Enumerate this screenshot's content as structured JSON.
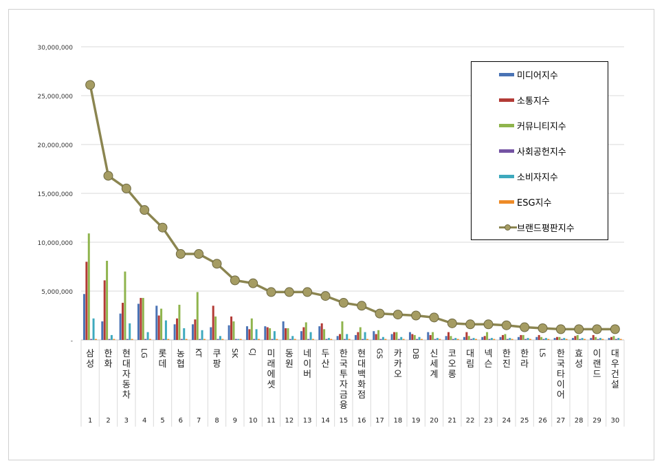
{
  "colors": {
    "media": "#4a73b5",
    "comm": "#b33b36",
    "community": "#8fb44d",
    "social": "#7453a3",
    "consumer": "#3ea9bd",
    "esg": "#ee8b27",
    "brand_line": "#8b8550",
    "brand_marker": "#a59c63"
  },
  "chart_data": {
    "type": "bar",
    "ylim": [
      0,
      30000000
    ],
    "ytick_labels": [
      "30,000,000",
      "25,000,000",
      "20,000,000",
      "15,000,000",
      "10,000,000",
      "5,000,000",
      "-"
    ],
    "ytick_values": [
      30000000,
      25000000,
      20000000,
      15000000,
      10000000,
      5000000,
      0
    ],
    "categories": [
      "삼성",
      "한화",
      "현대자동차",
      "LG",
      "롯데",
      "농협",
      "KT",
      "쿠팡",
      "SK",
      "CJ",
      "미래에셋",
      "동원",
      "네이버",
      "두산",
      "한국투자금융",
      "현대백화점",
      "GS",
      "카카오",
      "DB",
      "신세계",
      "코오롱",
      "대림",
      "넥슨",
      "한진",
      "한라",
      "LS",
      "한국타이어",
      "효성",
      "이랜드",
      "대우건설"
    ],
    "ranks": [
      "1",
      "2",
      "3",
      "4",
      "5",
      "6",
      "7",
      "8",
      "9",
      "10",
      "11",
      "12",
      "13",
      "14",
      "15",
      "16",
      "17",
      "18",
      "19",
      "20",
      "21",
      "22",
      "23",
      "24",
      "25",
      "26",
      "27",
      "28",
      "29",
      "30"
    ],
    "series": [
      {
        "name": "미디어지수",
        "type": "bar",
        "color_key": "media",
        "values": [
          4700000,
          1900000,
          2700000,
          3700000,
          3500000,
          1600000,
          1600000,
          1300000,
          1500000,
          1400000,
          1400000,
          1900000,
          900000,
          1400000,
          400000,
          500000,
          900000,
          600000,
          800000,
          800000,
          400000,
          300000,
          300000,
          300000,
          300000,
          300000,
          200000,
          200000,
          200000,
          200000
        ]
      },
      {
        "name": "소통지수",
        "type": "bar",
        "color_key": "comm",
        "values": [
          8000000,
          6100000,
          3800000,
          4300000,
          2500000,
          2200000,
          2100000,
          3500000,
          2400000,
          1100000,
          1300000,
          1200000,
          1300000,
          1700000,
          600000,
          800000,
          600000,
          800000,
          600000,
          500000,
          800000,
          800000,
          400000,
          500000,
          500000,
          500000,
          300000,
          400000,
          500000,
          300000
        ]
      },
      {
        "name": "커뮤니티지수",
        "type": "bar",
        "color_key": "community",
        "values": [
          10900000,
          8100000,
          7000000,
          4300000,
          3200000,
          3600000,
          4900000,
          2400000,
          1900000,
          2200000,
          1200000,
          1200000,
          1800000,
          1100000,
          1900000,
          1300000,
          1000000,
          800000,
          500000,
          800000,
          400000,
          400000,
          800000,
          600000,
          500000,
          300000,
          300000,
          500000,
          300000,
          400000
        ]
      },
      {
        "name": "사회공헌지수",
        "type": "bar",
        "color_key": "social",
        "values": [
          100000,
          100000,
          100000,
          100000,
          100000,
          100000,
          100000,
          100000,
          100000,
          100000,
          100000,
          100000,
          100000,
          100000,
          100000,
          100000,
          100000,
          100000,
          100000,
          100000,
          100000,
          100000,
          100000,
          100000,
          100000,
          100000,
          100000,
          100000,
          100000,
          100000
        ]
      },
      {
        "name": "소비자지수",
        "type": "bar",
        "color_key": "consumer",
        "values": [
          2200000,
          500000,
          1700000,
          800000,
          2000000,
          1200000,
          1000000,
          400000,
          100000,
          1100000,
          900000,
          400000,
          800000,
          200000,
          600000,
          800000,
          300000,
          300000,
          300000,
          200000,
          200000,
          200000,
          200000,
          200000,
          200000,
          200000,
          200000,
          200000,
          200000,
          200000
        ]
      },
      {
        "name": "ESG지수",
        "type": "bar",
        "color_key": "esg",
        "values": [
          100000,
          100000,
          100000,
          100000,
          100000,
          100000,
          100000,
          100000,
          100000,
          100000,
          100000,
          100000,
          100000,
          100000,
          100000,
          100000,
          100000,
          100000,
          100000,
          100000,
          100000,
          100000,
          100000,
          100000,
          100000,
          100000,
          100000,
          100000,
          100000,
          100000
        ]
      },
      {
        "name": "브랜드평판지수",
        "type": "line",
        "color_key": "brand_line",
        "values": [
          26100000,
          16800000,
          15500000,
          13300000,
          11500000,
          8800000,
          8800000,
          7800000,
          6100000,
          5800000,
          4900000,
          4900000,
          4900000,
          4500000,
          3800000,
          3500000,
          2700000,
          2600000,
          2500000,
          2300000,
          1700000,
          1600000,
          1600000,
          1500000,
          1300000,
          1200000,
          1100000,
          1100000,
          1100000,
          1100000
        ]
      }
    ],
    "legend_position": "top-right",
    "grid": "horizontal"
  }
}
